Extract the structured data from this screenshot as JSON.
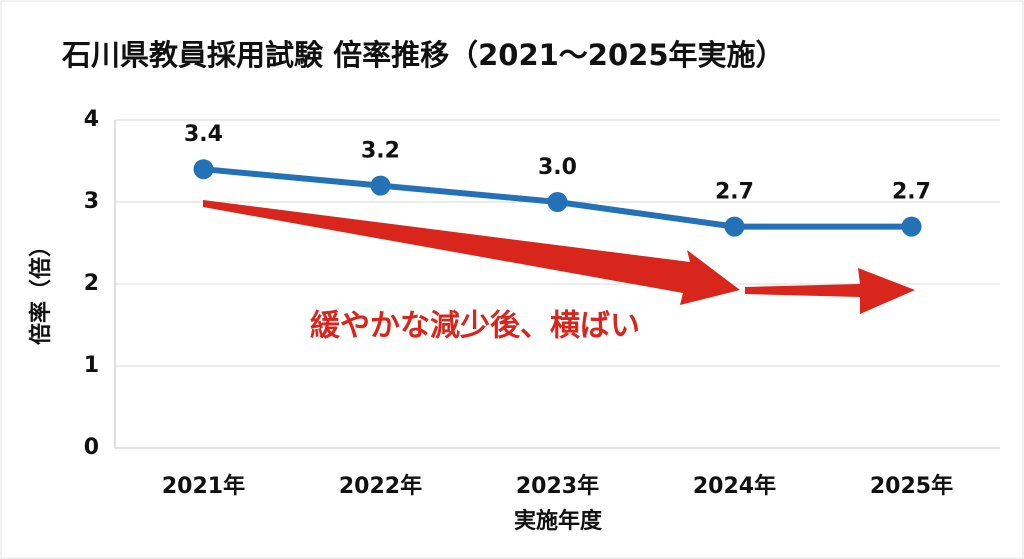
{
  "chart_data": {
    "type": "line",
    "title": "石川県教員採用試験 倍率推移（2021〜2025年実施）",
    "categories": [
      "2021年",
      "2022年",
      "2023年",
      "2024年",
      "2025年"
    ],
    "values": [
      3.4,
      3.2,
      3.0,
      2.7,
      2.7
    ],
    "value_labels": [
      "3.4",
      "3.2",
      "3.0",
      "2.7",
      "2.7"
    ],
    "color": "#2472b5",
    "x_label": "実施年度",
    "y_label": "倍率（倍）",
    "annotation": "緩やかな減少後、横ばい",
    "ylim": [
      0,
      4
    ],
    "yticks": [
      0,
      1,
      2,
      3,
      4
    ],
    "grid": true
  }
}
